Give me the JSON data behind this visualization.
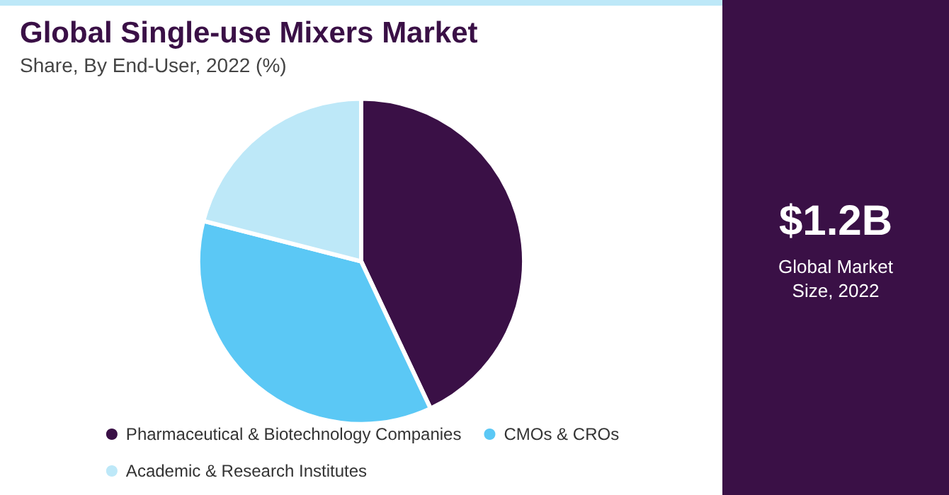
{
  "chart_data": {
    "type": "pie",
    "title": "Global Single-use Mixers Market",
    "subtitle": "Share, By End-User, 2022 (%)",
    "categories": [
      "Pharmaceutical & Biotechnology Companies",
      "CMOs & CROs",
      "Academic & Research Institutes"
    ],
    "values": [
      43,
      36,
      21
    ],
    "colors": [
      "#3a1046",
      "#5bc8f5",
      "#bde8f8"
    ],
    "legend": "bottom",
    "annotations": [
      "$1.2B",
      "Global Market Size, 2022"
    ]
  }
}
